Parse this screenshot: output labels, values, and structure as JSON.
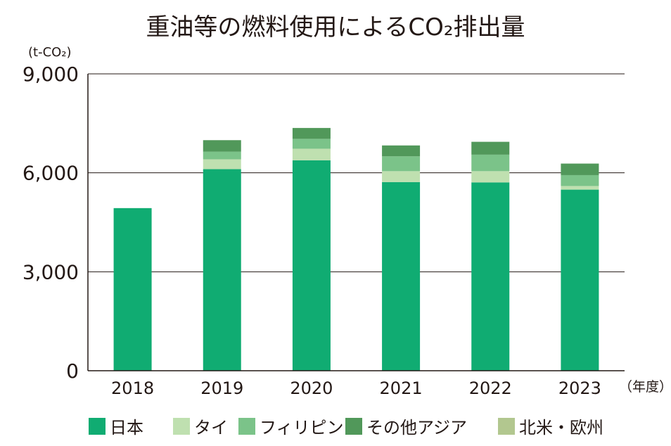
{
  "chart_data": {
    "type": "bar",
    "stacked": true,
    "title": "重油等の燃料使用によるCO₂排出量",
    "ylabel": "(t-CO₂)",
    "xlabel": "（年度）",
    "ylim": [
      0,
      9000
    ],
    "yticks": [
      0,
      3000,
      6000,
      9000
    ],
    "ytick_labels": [
      "0",
      "3,000",
      "6,000",
      "9,000"
    ],
    "grid": true,
    "legend_position": "bottom",
    "categories": [
      "2018",
      "2019",
      "2020",
      "2021",
      "2022",
      "2023"
    ],
    "series": [
      {
        "name": "日本",
        "color": "#10ac72",
        "values": [
          4930,
          6110,
          6380,
          5720,
          5710,
          5490
        ]
      },
      {
        "name": "タイ",
        "color": "#bfe0b0",
        "values": [
          0,
          300,
          350,
          330,
          340,
          110
        ]
      },
      {
        "name": "フィリピン",
        "color": "#7bc389",
        "values": [
          0,
          230,
          300,
          450,
          500,
          330
        ]
      },
      {
        "name": "その他アジア",
        "color": "#51985a",
        "values": [
          0,
          350,
          330,
          330,
          390,
          350
        ]
      },
      {
        "name": "北米・欧州",
        "color": "#b2c78f",
        "values": [
          0,
          0,
          0,
          0,
          0,
          0
        ]
      }
    ]
  }
}
